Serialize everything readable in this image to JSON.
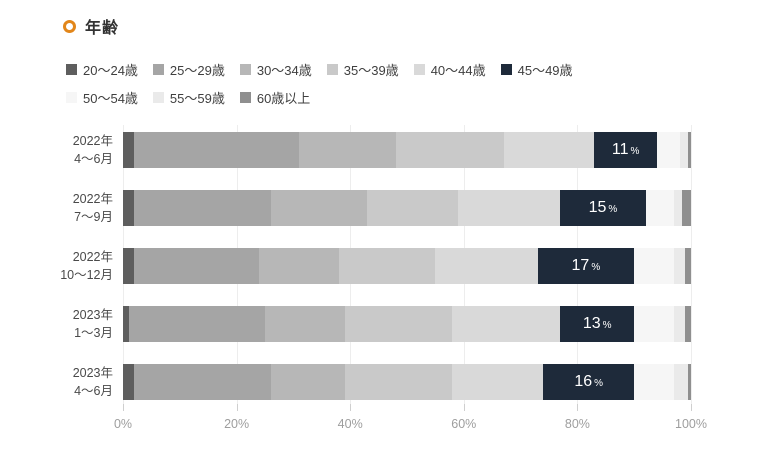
{
  "title": {
    "text": "年齢",
    "ring_color": "#e2861a"
  },
  "legend": {
    "rows": [
      [
        {
          "label": "20〜24歳",
          "color": "#5e5e5e"
        },
        {
          "label": "25〜29歳",
          "color": "#a5a5a5"
        },
        {
          "label": "30〜34歳",
          "color": "#b7b7b7"
        },
        {
          "label": "35〜39歳",
          "color": "#c9c9c9"
        },
        {
          "label": "40〜44歳",
          "color": "#d9d9d9"
        },
        {
          "label": "45〜49歳",
          "color": "#1e2a3a"
        }
      ],
      [
        {
          "label": "50〜54歳",
          "color": "#f6f6f6"
        },
        {
          "label": "55〜59歳",
          "color": "#eaeaea"
        },
        {
          "label": "60歳以上",
          "color": "#8f8f8f"
        }
      ]
    ]
  },
  "chart_data": {
    "type": "bar",
    "orientation": "horizontal-stacked",
    "title": "年齢",
    "xlabel": "",
    "ylabel": "",
    "xlim": [
      0,
      100
    ],
    "grid": true,
    "legend_position": "top",
    "categories": [
      {
        "line1": "2022年",
        "line2": "4〜6月"
      },
      {
        "line1": "2022年",
        "line2": "7〜9月"
      },
      {
        "line1": "2022年",
        "line2": "10〜12月"
      },
      {
        "line1": "2023年",
        "line2": "1〜3月"
      },
      {
        "line1": "2023年",
        "line2": "4〜6月"
      }
    ],
    "series": [
      {
        "name": "20〜24歳",
        "color": "#5e5e5e",
        "values": [
          2,
          2,
          2,
          1,
          2
        ]
      },
      {
        "name": "25〜29歳",
        "color": "#a5a5a5",
        "values": [
          29,
          24,
          22,
          24,
          24
        ]
      },
      {
        "name": "30〜34歳",
        "color": "#b7b7b7",
        "values": [
          17,
          17,
          14,
          14,
          13
        ]
      },
      {
        "name": "35〜39歳",
        "color": "#c9c9c9",
        "values": [
          19,
          16,
          17,
          19,
          19
        ]
      },
      {
        "name": "40〜44歳",
        "color": "#d9d9d9",
        "values": [
          16,
          18,
          18,
          19,
          16
        ]
      },
      {
        "name": "45〜49歳",
        "color": "#1e2a3a",
        "values": [
          11,
          15,
          17,
          13,
          16
        ]
      },
      {
        "name": "50〜54歳",
        "color": "#f6f6f6",
        "values": [
          4,
          5,
          7,
          7,
          7
        ]
      },
      {
        "name": "55〜59歳",
        "color": "#eaeaea",
        "values": [
          1.5,
          1.5,
          2,
          2,
          2.5
        ]
      },
      {
        "name": "60歳以上",
        "color": "#8f8f8f",
        "values": [
          0.5,
          1.5,
          1,
          1,
          0.5
        ]
      }
    ],
    "labeled_series": "45〜49歳",
    "bar_labels": [
      {
        "num": "11",
        "pct": "%"
      },
      {
        "num": "15",
        "pct": "%"
      },
      {
        "num": "17",
        "pct": "%"
      },
      {
        "num": "13",
        "pct": "%"
      },
      {
        "num": "16",
        "pct": "%"
      }
    ],
    "x_ticks": [
      {
        "label": "0%",
        "value": 0
      },
      {
        "label": "20%",
        "value": 20
      },
      {
        "label": "40%",
        "value": 40
      },
      {
        "label": "60%",
        "value": 60
      },
      {
        "label": "80%",
        "value": 80
      },
      {
        "label": "100%",
        "value": 100
      }
    ]
  }
}
